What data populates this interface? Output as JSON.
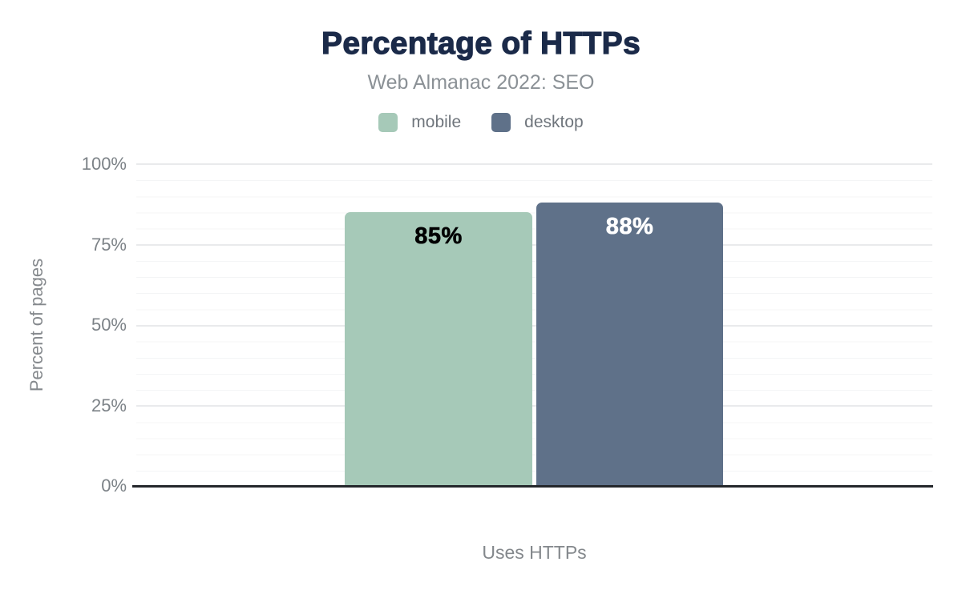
{
  "chart_data": {
    "type": "bar",
    "title": "Percentage of HTTPs",
    "subtitle": "Web Almanac 2022: SEO",
    "categories": [
      "Uses HTTPs"
    ],
    "series": [
      {
        "name": "mobile",
        "values": [
          85
        ],
        "data_label": "85%",
        "color": "#a6c9b8",
        "label_color": "#000000"
      },
      {
        "name": "desktop",
        "values": [
          88
        ],
        "data_label": "88%",
        "color": "#5f7189",
        "label_color": "#ffffff"
      }
    ],
    "xlabel": "Uses HTTPs",
    "ylabel": "Percent of pages",
    "ylim": [
      0,
      100
    ],
    "y_tick_labels": [
      "100%",
      "75%",
      "50%",
      "25%",
      "0%"
    ],
    "y_major_step": 25,
    "y_minor_step": 5,
    "grid": true,
    "legend_position": "top"
  },
  "colors": {
    "background": "#ffffff",
    "title_text": "#1b2a49",
    "subtitle_text": "#8b9196",
    "axis_text": "#7c8287",
    "legend_text": "#6f757c",
    "major_gridline": "#e9eaec",
    "minor_gridline": "#f4f5f6",
    "axis_line": "#24272b"
  }
}
